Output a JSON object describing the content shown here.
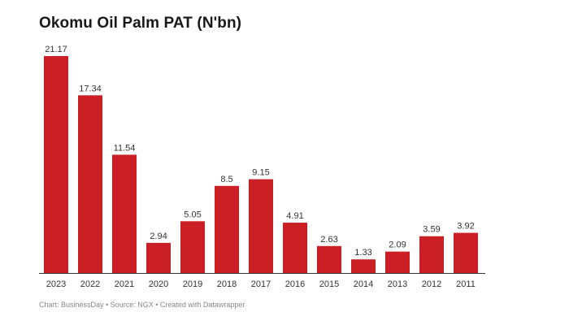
{
  "chart_data": {
    "type": "bar",
    "title": "Okomu Oil Palm PAT (N'bn)",
    "categories": [
      "2023",
      "2022",
      "2021",
      "2020",
      "2019",
      "2018",
      "2017",
      "2016",
      "2015",
      "2014",
      "2013",
      "2012",
      "2011"
    ],
    "values": [
      21.17,
      17.34,
      11.54,
      2.94,
      5.05,
      8.5,
      9.15,
      4.91,
      2.63,
      1.33,
      2.09,
      3.59,
      3.92
    ],
    "value_labels": [
      "21.17",
      "17.34",
      "11.54",
      "2.94",
      "5.05",
      "8.5",
      "9.15",
      "4.91",
      "2.63",
      "1.33",
      "2.09",
      "3.59",
      "3.92"
    ],
    "xlabel": "",
    "ylabel": "",
    "ylim": [
      0,
      21.17
    ],
    "grid": false,
    "legend": "none",
    "bar_color": "#c91f25"
  },
  "footer": {
    "text": "Chart: BusinessDay • Source: NGX • Created with Datawrapper"
  }
}
